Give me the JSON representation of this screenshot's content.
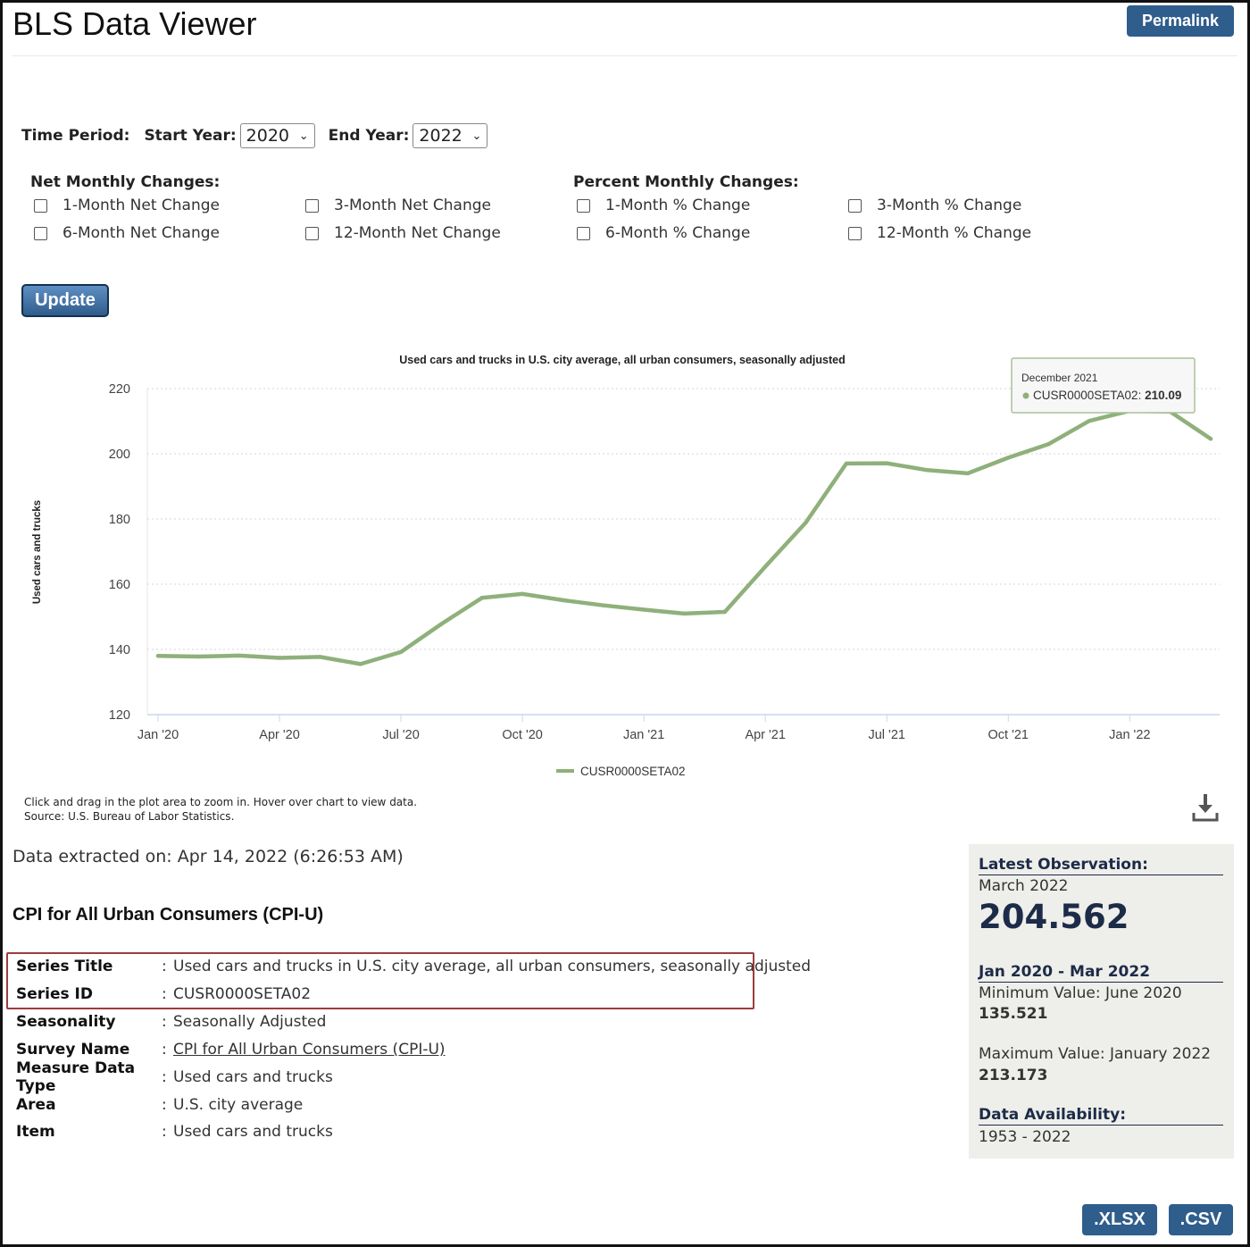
{
  "app": {
    "title": "BLS Data Viewer",
    "permalink_label": "Permalink"
  },
  "time_period": {
    "label": "Time Period:",
    "start_label": "Start Year:",
    "start_value": "2020",
    "end_label": "End Year:",
    "end_value": "2022"
  },
  "net_changes": {
    "title": "Net Monthly Changes:",
    "options": [
      "1-Month Net Change",
      "3-Month Net Change",
      "6-Month Net Change",
      "12-Month Net Change"
    ]
  },
  "pct_changes": {
    "title": "Percent Monthly Changes:",
    "options": [
      "1-Month % Change",
      "3-Month % Change",
      "6-Month % Change",
      "12-Month % Change"
    ]
  },
  "update_label": "Update",
  "chart_data": {
    "type": "line",
    "title": "Used cars and trucks in U.S. city average, all urban consumers, seasonally adjusted",
    "ylabel": "Used cars and trucks",
    "xlabel": "",
    "ylim": [
      120,
      220
    ],
    "yticks": [
      "220",
      "200",
      "180",
      "160",
      "140",
      "120"
    ],
    "xtick_labels": [
      "Jan '20",
      "Apr '20",
      "Jul '20",
      "Oct '20",
      "Jan '21",
      "Apr '21",
      "Jul '21",
      "Oct '21",
      "Jan '22"
    ],
    "grid": true,
    "legend": "bottom-center",
    "color": "#8fb07a",
    "x": [
      "2020-01",
      "2020-02",
      "2020-03",
      "2020-04",
      "2020-05",
      "2020-06",
      "2020-07",
      "2020-08",
      "2020-09",
      "2020-10",
      "2020-11",
      "2020-12",
      "2021-01",
      "2021-02",
      "2021-03",
      "2021-04",
      "2021-05",
      "2021-06",
      "2021-07",
      "2021-08",
      "2021-09",
      "2021-10",
      "2021-11",
      "2021-12",
      "2022-01",
      "2022-02",
      "2022-03"
    ],
    "series": [
      {
        "name": "CUSR0000SETA02",
        "values": [
          138.0,
          137.8,
          138.1,
          137.4,
          137.7,
          135.5,
          139.2,
          147.8,
          155.8,
          157.0,
          155.1,
          153.5,
          152.2,
          151.0,
          151.5,
          165.4,
          178.9,
          197.0,
          197.1,
          195.0,
          194.0,
          198.8,
          203.0,
          210.09,
          213.173,
          212.9,
          204.562
        ]
      }
    ],
    "tooltip": {
      "title": "December 2021",
      "series": "CUSR0000SETA02",
      "value": "210.09"
    }
  },
  "chart_note": {
    "line1": "Click and drag in the plot area to zoom in. Hover over chart to view data.",
    "line2": "Source: U.S. Bureau of Labor Statistics."
  },
  "extracted": "Data extracted on: Apr 14, 2022 (6:26:53 AM)",
  "series_heading": "CPI for All Urban Consumers (CPI-U)",
  "series_info": [
    {
      "label": "Series Title",
      "value": "Used cars and trucks in U.S. city average, all urban consumers, seasonally adjusted"
    },
    {
      "label": "Series ID",
      "value": "CUSR0000SETA02"
    },
    {
      "label": "Seasonality",
      "value": "Seasonally Adjusted"
    },
    {
      "label": "Survey Name",
      "value": "CPI for All Urban Consumers (CPI-U)"
    },
    {
      "label": "Measure Data Type",
      "value": "Used cars and trucks"
    },
    {
      "label": "Area",
      "value": "U.S. city average"
    },
    {
      "label": "Item",
      "value": "Used cars and trucks"
    }
  ],
  "sidebar": {
    "latest_title": "Latest Observation:",
    "latest_period": "March 2022",
    "latest_value": "204.562",
    "range_title": "Jan 2020 - Mar 2022",
    "min_label": "Minimum Value: June 2020",
    "min_value": "135.521",
    "max_label": "Maximum Value: January 2022",
    "max_value": "213.173",
    "availability_title": "Data Availability:",
    "availability_value": "1953 - 2022"
  },
  "downloads": {
    "xlsx": ".XLSX",
    "csv": ".CSV"
  }
}
